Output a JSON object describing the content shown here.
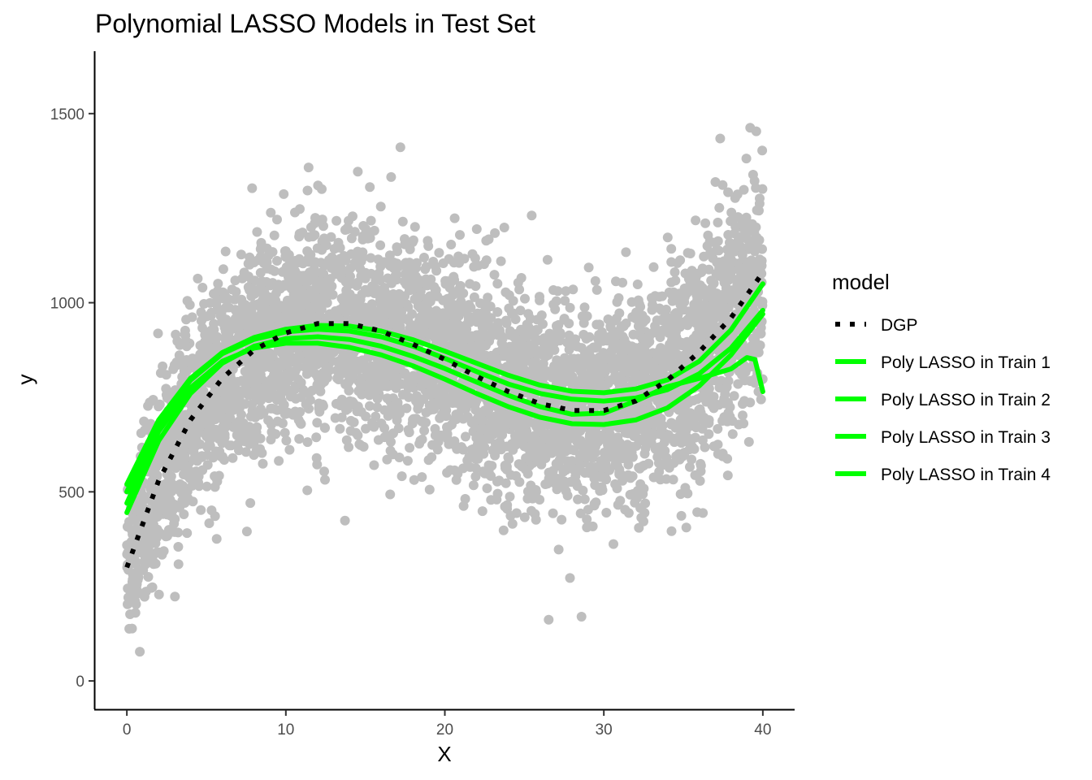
{
  "chart_data": {
    "type": "scatter",
    "title": "Polynomial LASSO Models in Test Set",
    "xlabel": "X",
    "ylabel": "y",
    "xlim": [
      -2,
      42
    ],
    "ylim": [
      -75,
      1665
    ],
    "x_ticks": [
      0,
      10,
      20,
      30,
      40
    ],
    "y_ticks": [
      0,
      500,
      1000,
      1500
    ],
    "x_tick_labels": [
      "0",
      "10",
      "20",
      "30",
      "40"
    ],
    "y_tick_labels": [
      "0",
      "500",
      "1000",
      "1500"
    ],
    "grid": false,
    "legend": {
      "title": "model",
      "position": "right",
      "entries": [
        "DGP",
        "Poly LASSO in Train 1",
        "Poly LASSO in Train 2",
        "Poly LASSO in Train 3",
        "Poly LASSO in Train 4"
      ]
    },
    "scatter": {
      "name": "test observations",
      "color": "#bebebe",
      "x_range": [
        0,
        40
      ],
      "approx_n_points": 5000,
      "mean_curve_source": "DGP",
      "noise_sd": 135
    },
    "series": [
      {
        "name": "DGP",
        "color": "#000000",
        "style": "dotted",
        "x": [
          0,
          2,
          4,
          6,
          8,
          10,
          12,
          14,
          16,
          18,
          20,
          22,
          24,
          26,
          28,
          30,
          32,
          34,
          36,
          38,
          40
        ],
        "y": [
          300,
          530,
          690,
          800,
          875,
          920,
          945,
          945,
          925,
          890,
          850,
          805,
          765,
          733,
          715,
          715,
          740,
          795,
          870,
          960,
          1080
        ]
      },
      {
        "name": "Poly LASSO in Train 1",
        "color": "#00ff00",
        "style": "solid",
        "x": [
          0,
          2,
          4,
          6,
          8,
          10,
          12,
          14,
          16,
          18,
          20,
          22,
          24,
          26,
          28,
          30,
          32,
          34,
          36,
          38,
          39,
          39.5,
          40
        ],
        "y": [
          445,
          635,
          760,
          840,
          885,
          905,
          910,
          903,
          885,
          858,
          826,
          790,
          755,
          725,
          705,
          708,
          740,
          778,
          800,
          825,
          855,
          850,
          765
        ]
      },
      {
        "name": "Poly LASSO in Train 2",
        "color": "#00ff00",
        "style": "solid",
        "x": [
          0,
          2,
          4,
          6,
          8,
          10,
          12,
          14,
          16,
          18,
          20,
          22,
          24,
          26,
          28,
          30,
          32,
          34,
          36,
          38,
          40
        ],
        "y": [
          470,
          660,
          775,
          845,
          880,
          893,
          893,
          882,
          862,
          833,
          798,
          760,
          725,
          697,
          680,
          678,
          690,
          722,
          780,
          862,
          970
        ]
      },
      {
        "name": "Poly LASSO in Train 3",
        "color": "#00ff00",
        "style": "solid",
        "x": [
          0,
          2,
          4,
          6,
          8,
          10,
          12,
          14,
          16,
          18,
          20,
          22,
          24,
          26,
          28,
          30,
          32,
          34,
          36,
          38,
          40
        ],
        "y": [
          500,
          680,
          795,
          865,
          903,
          923,
          930,
          925,
          910,
          885,
          853,
          818,
          785,
          760,
          745,
          740,
          748,
          770,
          812,
          880,
          980
        ]
      },
      {
        "name": "Poly LASSO in Train 4",
        "color": "#00ff00",
        "style": "solid",
        "x": [
          0,
          2,
          4,
          6,
          8,
          10,
          12,
          14,
          16,
          18,
          20,
          22,
          24,
          26,
          28,
          30,
          32,
          34,
          36,
          38,
          40
        ],
        "y": [
          520,
          690,
          800,
          868,
          908,
          930,
          940,
          938,
          925,
          902,
          872,
          840,
          808,
          782,
          766,
          762,
          772,
          796,
          845,
          928,
          1050
        ]
      }
    ]
  }
}
